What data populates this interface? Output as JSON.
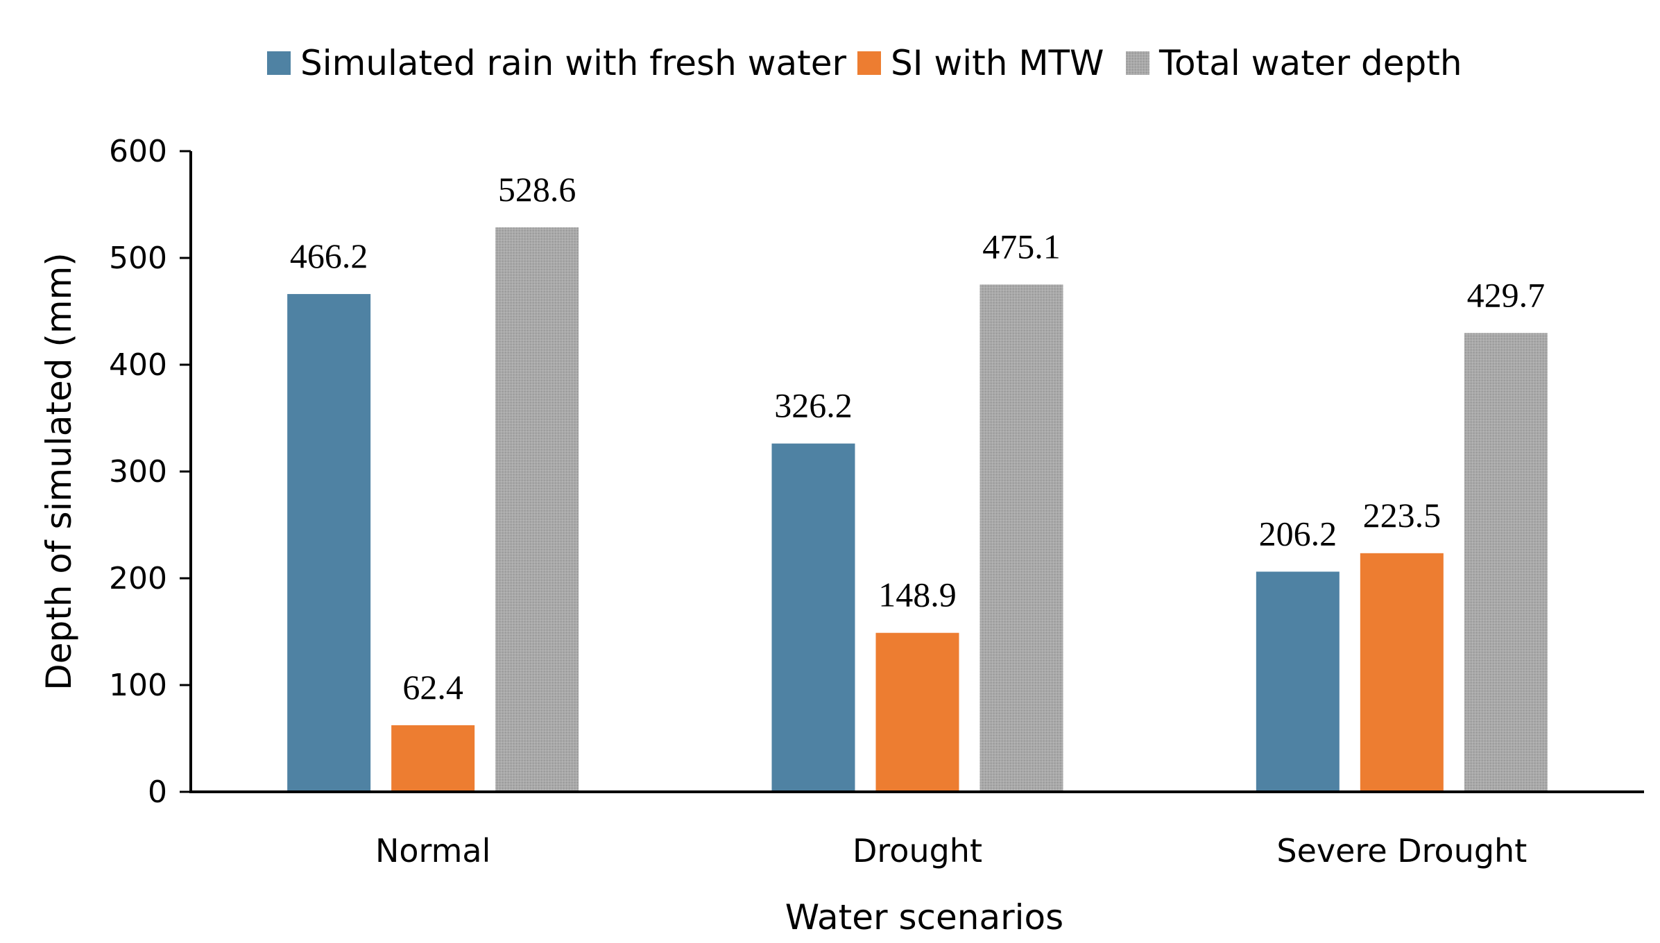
{
  "chart_data": {
    "type": "bar",
    "title": "",
    "xlabel": "Water scenarios",
    "ylabel": "Depth of simulated (mm)",
    "ylim": [
      0,
      600
    ],
    "yticks": [
      0,
      100,
      200,
      300,
      400,
      500,
      600
    ],
    "grid": false,
    "legend_position": "top-center",
    "categories": [
      "Normal",
      "Drought",
      "Severe Drought"
    ],
    "series": [
      {
        "name": "Simulated rain with fresh water",
        "color": "#4f82a3",
        "values": [
          466.2,
          326.2,
          206.2
        ],
        "labels": [
          "466.2",
          "326.2",
          "206.2"
        ]
      },
      {
        "name": "SI with MTW",
        "color": "#ed7d31",
        "values": [
          62.4,
          148.9,
          223.5
        ],
        "labels": [
          "62.4",
          "148.9",
          "223.5"
        ]
      },
      {
        "name": "Total water depth",
        "color": "#a5a5a5",
        "values": [
          528.6,
          475.1,
          429.7
        ],
        "labels": [
          "528.6",
          "475.1",
          "429.7"
        ]
      }
    ]
  }
}
